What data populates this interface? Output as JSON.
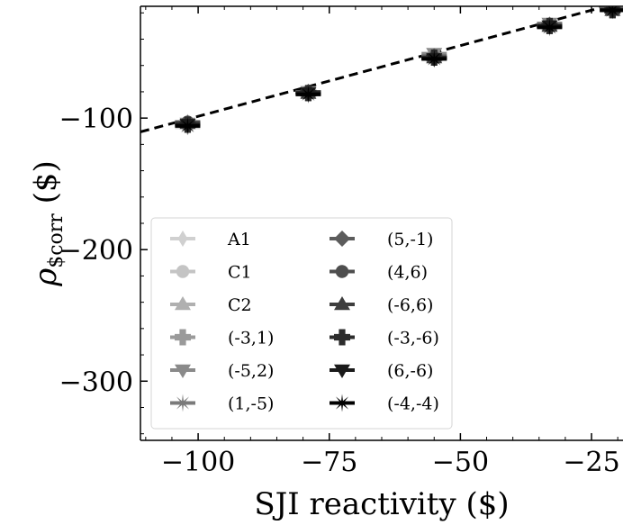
{
  "chart_data": {
    "type": "scatter",
    "title": "",
    "xlabel": "SJI reactivity ($)",
    "ylabel_main": "ρ",
    "ylabel_sub": "$corr",
    "ylabel_unit": " ($)",
    "xlim": [
      -111,
      -19
    ],
    "ylim": [
      -345,
      -15
    ],
    "xticks": [
      -100,
      -75,
      -50,
      -25
    ],
    "yticks": [
      -100,
      -200,
      -300
    ],
    "xtick_labels": [
      "−100",
      "−75",
      "−50",
      "−25"
    ],
    "ytick_labels": [
      "−100",
      "−200",
      "−300"
    ],
    "grid": false,
    "legend_position": "lower-left",
    "fit_line": {
      "style": "dashed",
      "x": [
        -111,
        -19
      ],
      "y": [
        -110.5,
        -11.5
      ]
    },
    "series": [
      {
        "name": "A1",
        "color": "#d0d0d0",
        "marker": "thin-diamond",
        "x": [
          -102,
          -79,
          -55,
          -33,
          -21
        ],
        "y": [
          -107,
          -82,
          -55,
          -30,
          -18
        ]
      },
      {
        "name": "C1",
        "color": "#c4c4c4",
        "marker": "octagon",
        "x": [
          -102,
          -79,
          -55,
          -33,
          -21
        ],
        "y": [
          -104,
          -81,
          -54,
          -30,
          -18
        ]
      },
      {
        "name": "C2",
        "color": "#b0b0b0",
        "marker": "tri-up",
        "x": [
          -102,
          -79,
          -55,
          -33,
          -21
        ],
        "y": [
          -103,
          -80,
          -53,
          -29,
          -17
        ]
      },
      {
        "name": "(-3,1)",
        "color": "#9a9a9a",
        "marker": "plus-filled",
        "x": [
          -102,
          -79,
          -55,
          -33,
          -21
        ],
        "y": [
          -105,
          -81,
          -54,
          -30,
          -18
        ]
      },
      {
        "name": "(-5,2)",
        "color": "#8a8a8a",
        "marker": "tri-down",
        "x": [
          -102,
          -79,
          -55,
          -33,
          -21
        ],
        "y": [
          -104,
          -80,
          -51,
          -28,
          -17
        ]
      },
      {
        "name": "(1,-5)",
        "color": "#7a7a7a",
        "marker": "star",
        "x": [
          -102,
          -79,
          -55,
          -33,
          -21
        ],
        "y": [
          -105,
          -81,
          -54,
          -30,
          -18
        ]
      },
      {
        "name": "(5,-1)",
        "color": "#5c5c5c",
        "marker": "diamond",
        "x": [
          -102,
          -79,
          -55,
          -33,
          -21
        ],
        "y": [
          -104,
          -80,
          -53,
          -29,
          -17
        ]
      },
      {
        "name": "(4,6)",
        "color": "#4e4e4e",
        "marker": "octagon",
        "x": [
          -102,
          -79,
          -55,
          -33,
          -21
        ],
        "y": [
          -103,
          -80,
          -54,
          -30,
          -18
        ]
      },
      {
        "name": "(-6,6)",
        "color": "#3e3e3e",
        "marker": "tri-up",
        "x": [
          -102,
          -79,
          -55,
          -33,
          -21
        ],
        "y": [
          -104,
          -81,
          -54,
          -30,
          -18
        ]
      },
      {
        "name": "(-3,-6)",
        "color": "#2c2c2c",
        "marker": "plus-filled",
        "x": [
          -102,
          -79,
          -55,
          -33,
          -21
        ],
        "y": [
          -105,
          -81,
          -54,
          -30,
          -18
        ]
      },
      {
        "name": "(6,-6)",
        "color": "#1a1a1a",
        "marker": "tri-down",
        "x": [
          -102,
          -79,
          -55,
          -33,
          -21
        ],
        "y": [
          -105,
          -81,
          -55,
          -30,
          -18
        ]
      },
      {
        "name": "(-4,-4)",
        "color": "#000000",
        "marker": "star",
        "x": [
          -102,
          -79,
          -55,
          -33,
          -21
        ],
        "y": [
          -106,
          -82,
          -55,
          -31,
          -18
        ]
      }
    ]
  }
}
